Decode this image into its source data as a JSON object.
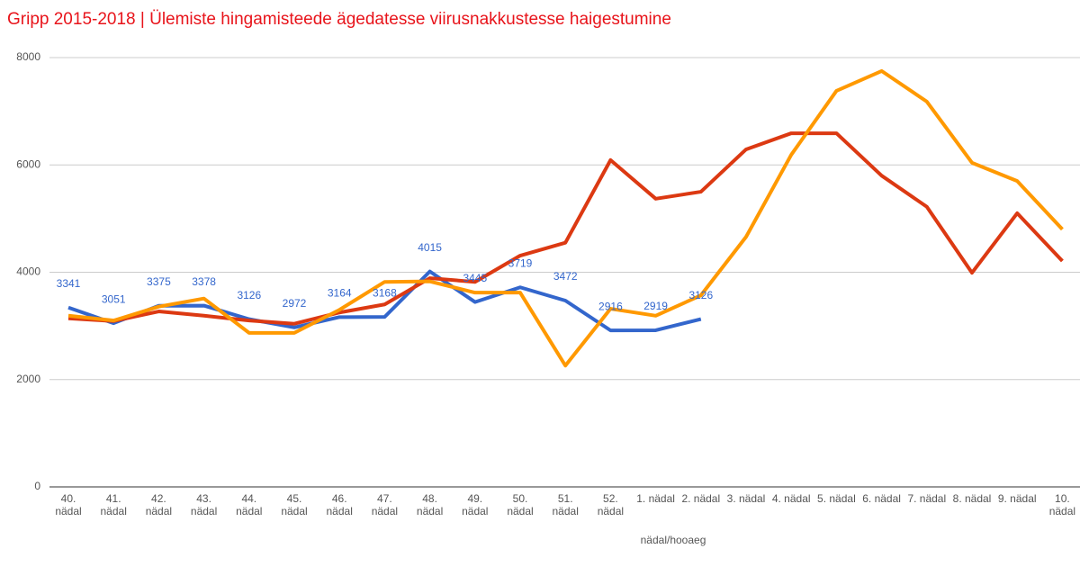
{
  "chart_data": {
    "type": "line",
    "title": "Gripp 2015-2018 | Ülemiste hingamisteede ägedatesse viirusnakkustesse haigestumine",
    "x_label": "nädal/hooaeg",
    "categories": [
      "40. nädal",
      "41. nädal",
      "42. nädal",
      "43. nädal",
      "44. nädal",
      "45. nädal",
      "46. nädal",
      "47. nädal",
      "48. nädal",
      "49. nädal",
      "50. nädal",
      "51. nädal",
      "52. nädal",
      "1. nädal",
      "2. nädal",
      "3. nädal",
      "4. nädal",
      "5. nädal",
      "6. nädal",
      "7. nädal",
      "8. nädal",
      "9. nädal",
      "10. nädal"
    ],
    "ylim": [
      0,
      8000
    ],
    "yticks": [
      0,
      2000,
      4000,
      6000,
      8000
    ],
    "grid": true,
    "series": [
      {
        "color": "#3366cc",
        "show_labels": true,
        "values": [
          3341,
          3051,
          3375,
          3378,
          3126,
          2972,
          3164,
          3168,
          4015,
          3445,
          3719,
          3472,
          2916,
          2919,
          3126,
          null,
          null,
          null,
          null,
          null,
          null,
          null,
          null
        ]
      },
      {
        "color": "#dc3912",
        "values": [
          3140,
          3090,
          3270,
          3190,
          3100,
          3040,
          3250,
          3400,
          3890,
          3820,
          4310,
          4550,
          6090,
          5370,
          5500,
          6290,
          6590,
          6590,
          5800,
          5220,
          3990,
          5100,
          4210
        ]
      },
      {
        "color": "#ff9900",
        "values": [
          3190,
          3100,
          3360,
          3510,
          2870,
          2870,
          3300,
          3820,
          3830,
          3620,
          3620,
          2260,
          3320,
          3190,
          3570,
          4660,
          6190,
          7380,
          7750,
          7180,
          6040,
          5700,
          4800
        ]
      }
    ]
  }
}
